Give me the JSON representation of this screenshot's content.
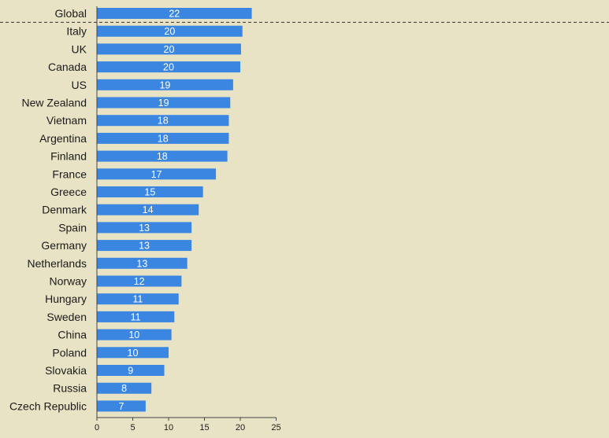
{
  "chart_data": {
    "type": "bar",
    "orientation": "horizontal",
    "categories": [
      "Global",
      "Italy",
      "UK",
      "Canada",
      "US",
      "New Zealand",
      "Vietnam",
      "Argentina",
      "Finland",
      "France",
      "Greece",
      "Denmark",
      "Spain",
      "Germany",
      "Netherlands",
      "Norway",
      "Hungary",
      "Sweden",
      "China",
      "Poland",
      "Slovakia",
      "Russia",
      "Czech Republic"
    ],
    "values": [
      21.6,
      20.3,
      20.1,
      20.0,
      19.0,
      18.6,
      18.4,
      18.4,
      18.2,
      16.6,
      14.8,
      14.2,
      13.2,
      13.2,
      12.6,
      11.8,
      11.4,
      10.8,
      10.4,
      10.0,
      9.4,
      7.6,
      6.8
    ],
    "data_labels": [
      "22",
      "20",
      "20",
      "20",
      "19",
      "19",
      "18",
      "18",
      "18",
      "17",
      "15",
      "14",
      "13",
      "13",
      "13",
      "12",
      "11",
      "11",
      "10",
      "10",
      "9",
      "8",
      "7"
    ],
    "xlim": [
      0,
      25
    ],
    "xticks": [
      "0",
      "5",
      "10",
      "15",
      "20",
      "25"
    ],
    "title": "",
    "xlabel": "",
    "ylabel": "",
    "grid": false,
    "legend": "none",
    "bar_color": "#3a86e0",
    "separator_after": "Global"
  }
}
